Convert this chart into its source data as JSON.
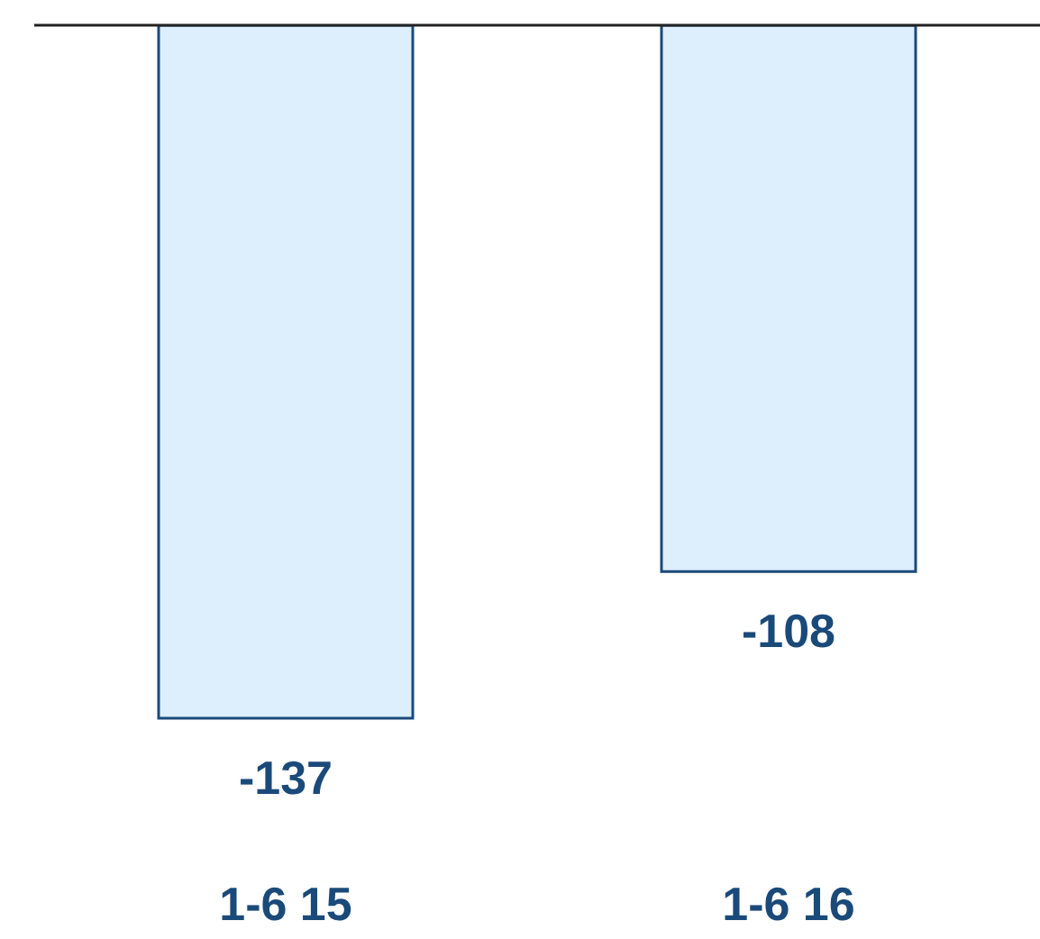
{
  "chart_data": {
    "type": "bar",
    "categories": [
      "1-6 15",
      "1-6 16"
    ],
    "values": [
      -137,
      -108
    ],
    "color": "#ddeffc",
    "data_labels": true
  }
}
